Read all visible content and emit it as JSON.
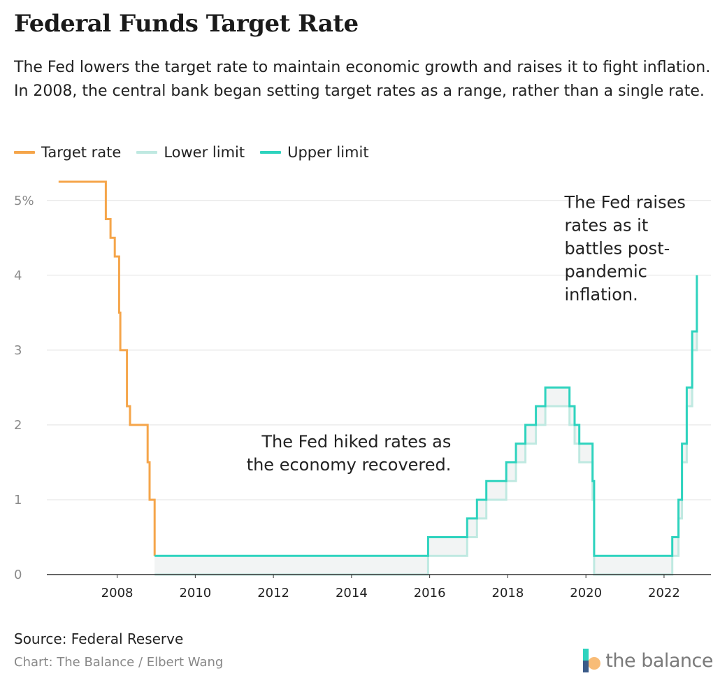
{
  "title": "Federal Funds Target Rate",
  "subtitle": "The Fed lowers the target rate to maintain economic growth and raises it to fight inflation. In 2008, the central bank began setting target rates as a range, rather than a single rate.",
  "legend": [
    {
      "label": "Target rate",
      "color": "#F5A54A"
    },
    {
      "label": "Lower limit",
      "color": "#BFE9E1"
    },
    {
      "label": "Upper limit",
      "color": "#2ED3BE"
    }
  ],
  "source": "Source: Federal Reserve",
  "credit": "Chart: The Balance / Elbert Wang",
  "brand": "the balance",
  "chart_data": {
    "type": "line",
    "title": "Federal Funds Target Rate",
    "xlabel": "",
    "ylabel": "",
    "xlim": [
      2006.2,
      2023.2
    ],
    "ylim": [
      0,
      5.25
    ],
    "y_ticks": [
      {
        "value": 0,
        "label": "0"
      },
      {
        "value": 1,
        "label": "1"
      },
      {
        "value": 2,
        "label": "2"
      },
      {
        "value": 3,
        "label": "3"
      },
      {
        "value": 4,
        "label": "4"
      },
      {
        "value": 5,
        "label": "5%"
      }
    ],
    "x_ticks": [
      {
        "value": 2008,
        "label": "2008"
      },
      {
        "value": 2010,
        "label": "2010"
      },
      {
        "value": 2012,
        "label": "2012"
      },
      {
        "value": 2014,
        "label": "2014"
      },
      {
        "value": 2016,
        "label": "2016"
      },
      {
        "value": 2018,
        "label": "2018"
      },
      {
        "value": 2020,
        "label": "2020"
      },
      {
        "value": 2022,
        "label": "2022"
      }
    ],
    "grid": true,
    "series": [
      {
        "name": "Target rate",
        "color": "#F5A54A",
        "step": true,
        "points": [
          [
            2006.5,
            5.25
          ],
          [
            2007.71,
            4.75
          ],
          [
            2007.83,
            4.5
          ],
          [
            2007.94,
            4.25
          ],
          [
            2008.05,
            3.5
          ],
          [
            2008.08,
            3.0
          ],
          [
            2008.25,
            2.25
          ],
          [
            2008.33,
            2.0
          ],
          [
            2008.78,
            1.5
          ],
          [
            2008.83,
            1.0
          ],
          [
            2008.96,
            0.25
          ]
        ]
      },
      {
        "name": "Lower limit",
        "color": "#BFE9E1",
        "step": true,
        "points": [
          [
            2008.96,
            0
          ],
          [
            2015.96,
            0.25
          ],
          [
            2016.96,
            0.5
          ],
          [
            2017.21,
            0.75
          ],
          [
            2017.45,
            1.0
          ],
          [
            2017.96,
            1.25
          ],
          [
            2018.21,
            1.5
          ],
          [
            2018.45,
            1.75
          ],
          [
            2018.72,
            2.0
          ],
          [
            2018.96,
            2.25
          ],
          [
            2019.58,
            2.0
          ],
          [
            2019.71,
            1.75
          ],
          [
            2019.83,
            1.5
          ],
          [
            2020.17,
            1.0
          ],
          [
            2020.21,
            0
          ],
          [
            2022.21,
            0.25
          ],
          [
            2022.37,
            0.75
          ],
          [
            2022.46,
            1.5
          ],
          [
            2022.58,
            2.25
          ],
          [
            2022.72,
            3.0
          ],
          [
            2022.84,
            3.75
          ]
        ]
      },
      {
        "name": "Upper limit",
        "color": "#2ED3BE",
        "step": true,
        "points": [
          [
            2008.96,
            0.25
          ],
          [
            2015.96,
            0.5
          ],
          [
            2016.96,
            0.75
          ],
          [
            2017.21,
            1.0
          ],
          [
            2017.45,
            1.25
          ],
          [
            2017.96,
            1.5
          ],
          [
            2018.21,
            1.75
          ],
          [
            2018.45,
            2.0
          ],
          [
            2018.72,
            2.25
          ],
          [
            2018.96,
            2.5
          ],
          [
            2019.58,
            2.25
          ],
          [
            2019.71,
            2.0
          ],
          [
            2019.83,
            1.75
          ],
          [
            2020.17,
            1.25
          ],
          [
            2020.21,
            0.25
          ],
          [
            2022.21,
            0.5
          ],
          [
            2022.37,
            1.0
          ],
          [
            2022.46,
            1.75
          ],
          [
            2022.58,
            2.5
          ],
          [
            2022.72,
            3.25
          ],
          [
            2022.84,
            4.0
          ]
        ]
      }
    ],
    "x_end": 2022.84,
    "annotations": [
      {
        "id": "annotation-hike",
        "lines": [
          "The Fed hiked rates as",
          "the economy recovered."
        ],
        "align": "right",
        "x": 2016.55,
        "y": 1.7
      },
      {
        "id": "annotation-raise",
        "lines": [
          "The Fed raises",
          "rates as it",
          "battles post-",
          "pandemic",
          "inflation."
        ],
        "align": "left",
        "x": 2019.45,
        "y": 4.9
      }
    ]
  }
}
